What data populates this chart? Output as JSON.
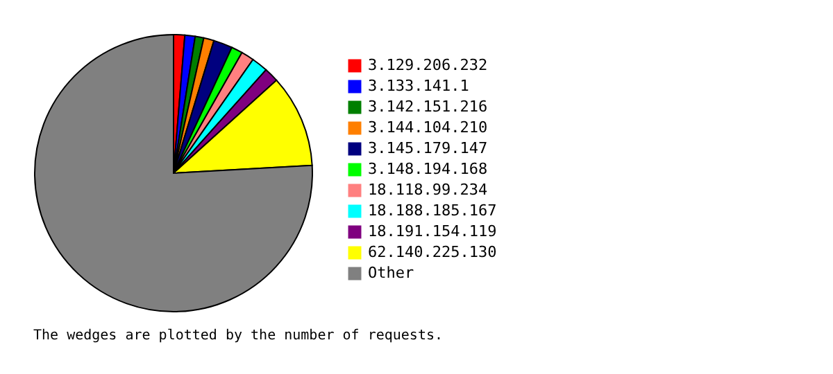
{
  "chart_data": {
    "type": "pie",
    "categories": [
      "3.129.206.232",
      "3.133.141.1",
      "3.142.151.216",
      "3.144.104.210",
      "3.145.179.147",
      "3.148.194.168",
      "18.118.99.234",
      "18.188.185.167",
      "18.191.154.119",
      "62.140.225.130",
      "Other"
    ],
    "values": [
      1.3,
      1.2,
      1.0,
      1.2,
      2.2,
      1.3,
      1.5,
      1.9,
      1.7,
      10.8,
      75.9
    ],
    "colors": [
      "#ff0000",
      "#0000ff",
      "#007f00",
      "#ff7f00",
      "#00007f",
      "#00ff00",
      "#ff8080",
      "#00ffff",
      "#7f007f",
      "#ffff00",
      "#808080"
    ],
    "legend": "right",
    "annotations": [
      "The wedges are plotted by the number of requests."
    ]
  }
}
